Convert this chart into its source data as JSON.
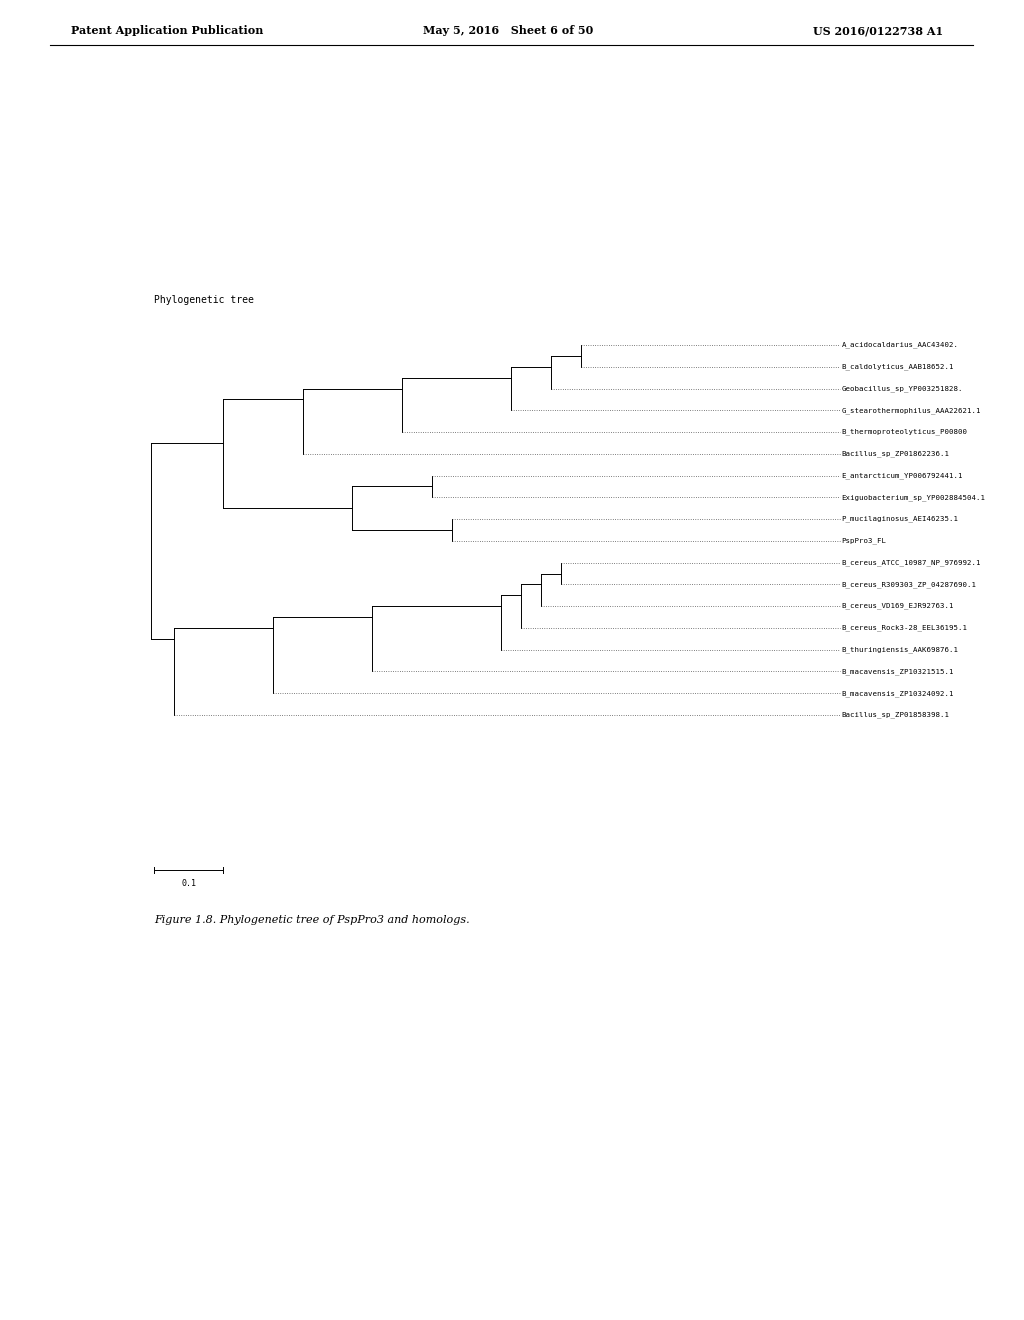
{
  "page_title_left": "Patent Application Publication",
  "page_title_mid": "May 5, 2016   Sheet 6 of 50",
  "page_title_right": "US 2016/0122738 A1",
  "tree_label": "Phylogenetic tree",
  "taxa": [
    "A_acidocaldarius_AAC43402.",
    "B_caldolyticus_AAB18652.1",
    "Geobacillus_sp_YP003251828.",
    "G_stearothermophilus_AAA22621.1",
    "B_thermoproteolyticus_P00800",
    "Bacillus_sp_ZP01862236.1",
    "E_antarcticum_YP006792441.1",
    "Exiguobacterium_sp_YP002884504.1",
    "P_mucilaginosus_AEI46235.1",
    "PspPro3_FL",
    "B_cereus_ATCC_10987_NP_976992.1",
    "B_cereus_R309303_ZP_04287690.1",
    "B_cereus_VD169_EJR92763.1",
    "B_cereus_Rock3-28_EEL36195.1",
    "B_thuringiensis_AAK69876.1",
    "B_macavensis_ZP10321515.1",
    "B_macavensis_ZP10324092.1",
    "Bacillus_sp_ZP01858398.1"
  ],
  "scale_label": "0.1",
  "figure_caption": "Figure 1.8. Phylogenetic tree of PspPro3 and homologs.",
  "bg_color": "#ffffff",
  "line_color": "#000000",
  "text_color": "#000000",
  "dotted_color": "#555555"
}
